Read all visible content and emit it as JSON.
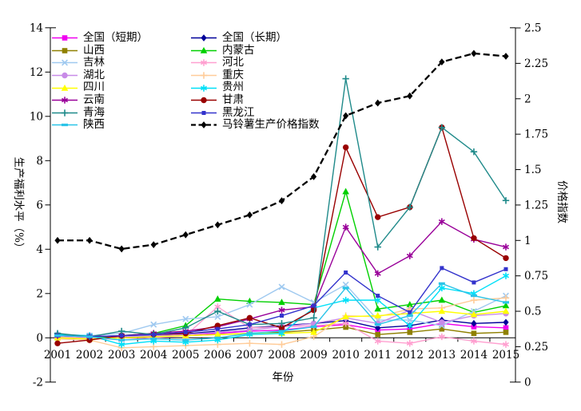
{
  "background": "#FFFFFF",
  "chart_data": {
    "type": "line",
    "title": "",
    "xlabel": "年份",
    "ylabel_left": "生产福利水平（%）",
    "ylabel_right": "价格指数",
    "x": [
      2001,
      2002,
      2003,
      2004,
      2005,
      2006,
      2007,
      2008,
      2009,
      2010,
      2011,
      2012,
      2013,
      2014,
      2015
    ],
    "ylim_left": [
      -2,
      14
    ],
    "yticks_left": [
      -2,
      0,
      2,
      4,
      6,
      8,
      10,
      12,
      14
    ],
    "ylim_right": [
      0,
      2.5
    ],
    "yticks_right": [
      0,
      0.25,
      0.5,
      0.75,
      1,
      1.25,
      1.5,
      1.75,
      2,
      2.25,
      2.5
    ],
    "yticks_right_labels": [
      "0",
      "0.25",
      "0.5",
      "0.75",
      "1",
      "1.25",
      "1.5",
      "1.75",
      "2",
      "2.25",
      "2.5"
    ],
    "grid": false,
    "legend_position": "top-left-two-columns",
    "series": [
      {
        "id": "national-short",
        "name": "全国（短期）",
        "color": "#F000F0",
        "marker": "square",
        "line": "solid",
        "axis": "left",
        "values": [
          0.05,
          0.05,
          0.0,
          0.05,
          0.1,
          0.2,
          0.3,
          0.35,
          0.5,
          0.6,
          0.35,
          0.4,
          0.65,
          0.5,
          0.45
        ]
      },
      {
        "id": "national-long",
        "name": "全国（长期）",
        "color": "#000099",
        "marker": "diamond",
        "line": "solid",
        "axis": "left",
        "values": [
          0.1,
          0.08,
          0.05,
          0.1,
          0.18,
          0.3,
          0.45,
          0.55,
          0.65,
          0.78,
          0.45,
          0.55,
          0.8,
          0.65,
          0.7
        ]
      },
      {
        "id": "shanxi",
        "name": "山西",
        "color": "#8F8000",
        "marker": "square",
        "line": "solid",
        "axis": "left",
        "values": [
          0.0,
          -0.05,
          0.0,
          0.05,
          0.1,
          0.15,
          0.2,
          0.25,
          0.35,
          0.48,
          0.15,
          0.25,
          0.4,
          0.2,
          0.25
        ]
      },
      {
        "id": "neimenggu",
        "name": "内蒙古",
        "color": "#00D000",
        "marker": "triangle",
        "line": "solid",
        "axis": "left",
        "values": [
          0.05,
          0.0,
          0.1,
          0.2,
          0.55,
          1.75,
          1.65,
          1.6,
          1.5,
          6.6,
          1.3,
          1.5,
          1.7,
          1.15,
          1.45
        ]
      },
      {
        "id": "jilin",
        "name": "吉林",
        "color": "#9FC9F0",
        "marker": "x",
        "line": "solid",
        "axis": "left",
        "values": [
          0.1,
          0.1,
          0.2,
          0.6,
          0.85,
          0.95,
          1.5,
          2.3,
          1.6,
          2.4,
          0.8,
          0.8,
          0.55,
          1.2,
          1.9
        ]
      },
      {
        "id": "hebei",
        "name": "河北",
        "color": "#FFA0D0",
        "marker": "star",
        "line": "solid",
        "axis": "left",
        "values": [
          0.05,
          0.0,
          -0.1,
          0.0,
          0.1,
          1.4,
          0.45,
          0.5,
          0.55,
          0.65,
          -0.15,
          -0.25,
          0.05,
          -0.15,
          -0.3
        ]
      },
      {
        "id": "hubei",
        "name": "湖北",
        "color": "#C88BE8",
        "marker": "circle",
        "line": "solid",
        "axis": "left",
        "values": [
          0.15,
          0.1,
          0.05,
          0.1,
          0.15,
          0.25,
          0.35,
          0.5,
          0.65,
          0.9,
          0.65,
          1.25,
          0.7,
          1.0,
          1.1
        ]
      },
      {
        "id": "chongqing",
        "name": "重庆",
        "color": "#FFCC99",
        "marker": "plus",
        "line": "solid",
        "axis": "left",
        "values": [
          -0.05,
          -0.1,
          -0.45,
          -0.4,
          -0.35,
          -0.3,
          -0.25,
          -0.3,
          0.05,
          1.0,
          0.95,
          1.3,
          1.35,
          1.7,
          1.8
        ]
      },
      {
        "id": "sichuan",
        "name": "四川",
        "color": "#FFFF00",
        "marker": "triangle",
        "line": "solid",
        "axis": "left",
        "values": [
          0.0,
          -0.05,
          0.0,
          0.05,
          0.1,
          0.15,
          0.2,
          0.2,
          0.25,
          0.95,
          1.0,
          1.1,
          1.2,
          1.05,
          1.2
        ]
      },
      {
        "id": "guizhou",
        "name": "贵州",
        "color": "#00E0F8",
        "marker": "star",
        "line": "solid",
        "axis": "left",
        "values": [
          0.15,
          0.1,
          -0.3,
          -0.15,
          -0.2,
          -0.1,
          0.15,
          0.2,
          1.35,
          1.7,
          1.7,
          0.55,
          2.25,
          2.0,
          2.8
        ]
      },
      {
        "id": "yunnan",
        "name": "云南",
        "color": "#990099",
        "marker": "star",
        "line": "solid",
        "axis": "left",
        "values": [
          0.1,
          0.05,
          0.1,
          0.2,
          0.3,
          0.5,
          0.85,
          1.25,
          1.4,
          5.0,
          2.9,
          3.7,
          5.25,
          4.45,
          4.1
        ]
      },
      {
        "id": "gansu",
        "name": "甘肃",
        "color": "#990000",
        "marker": "circle",
        "line": "solid",
        "axis": "left",
        "values": [
          -0.25,
          -0.1,
          0.1,
          0.15,
          0.2,
          0.55,
          0.9,
          0.45,
          1.25,
          8.6,
          5.45,
          5.9,
          9.5,
          4.5,
          3.6
        ]
      },
      {
        "id": "qinghai",
        "name": "青海",
        "color": "#1F8A8A",
        "marker": "plus",
        "line": "solid",
        "axis": "left",
        "values": [
          0.2,
          0.05,
          0.3,
          0.15,
          0.45,
          1.2,
          0.6,
          0.65,
          0.9,
          11.7,
          4.1,
          5.9,
          9.5,
          8.4,
          6.2
        ]
      },
      {
        "id": "heilongjiang",
        "name": "黑龙江",
        "color": "#3333CC",
        "marker": "square-small",
        "line": "solid",
        "axis": "left",
        "values": [
          0.1,
          0.05,
          0.1,
          0.15,
          0.25,
          0.4,
          0.6,
          1.0,
          1.45,
          2.95,
          1.9,
          1.15,
          3.15,
          2.5,
          3.1
        ]
      },
      {
        "id": "shaanxi",
        "name": "陕西",
        "color": "#2BC4E8",
        "marker": "dash",
        "line": "solid",
        "axis": "left",
        "values": [
          0.1,
          0.05,
          -0.1,
          -0.05,
          -0.1,
          0.0,
          0.2,
          0.3,
          0.5,
          2.25,
          0.6,
          1.0,
          2.45,
          1.9,
          1.6
        ]
      },
      {
        "id": "potato-price-index",
        "name": "马铃薯生产价格指数",
        "color": "#000000",
        "marker": "diamond",
        "line": "dashed",
        "axis": "right",
        "values": [
          1.0,
          1.0,
          0.94,
          0.97,
          1.04,
          1.11,
          1.18,
          1.28,
          1.45,
          1.88,
          1.97,
          2.02,
          2.26,
          2.32,
          2.3
        ]
      }
    ]
  }
}
